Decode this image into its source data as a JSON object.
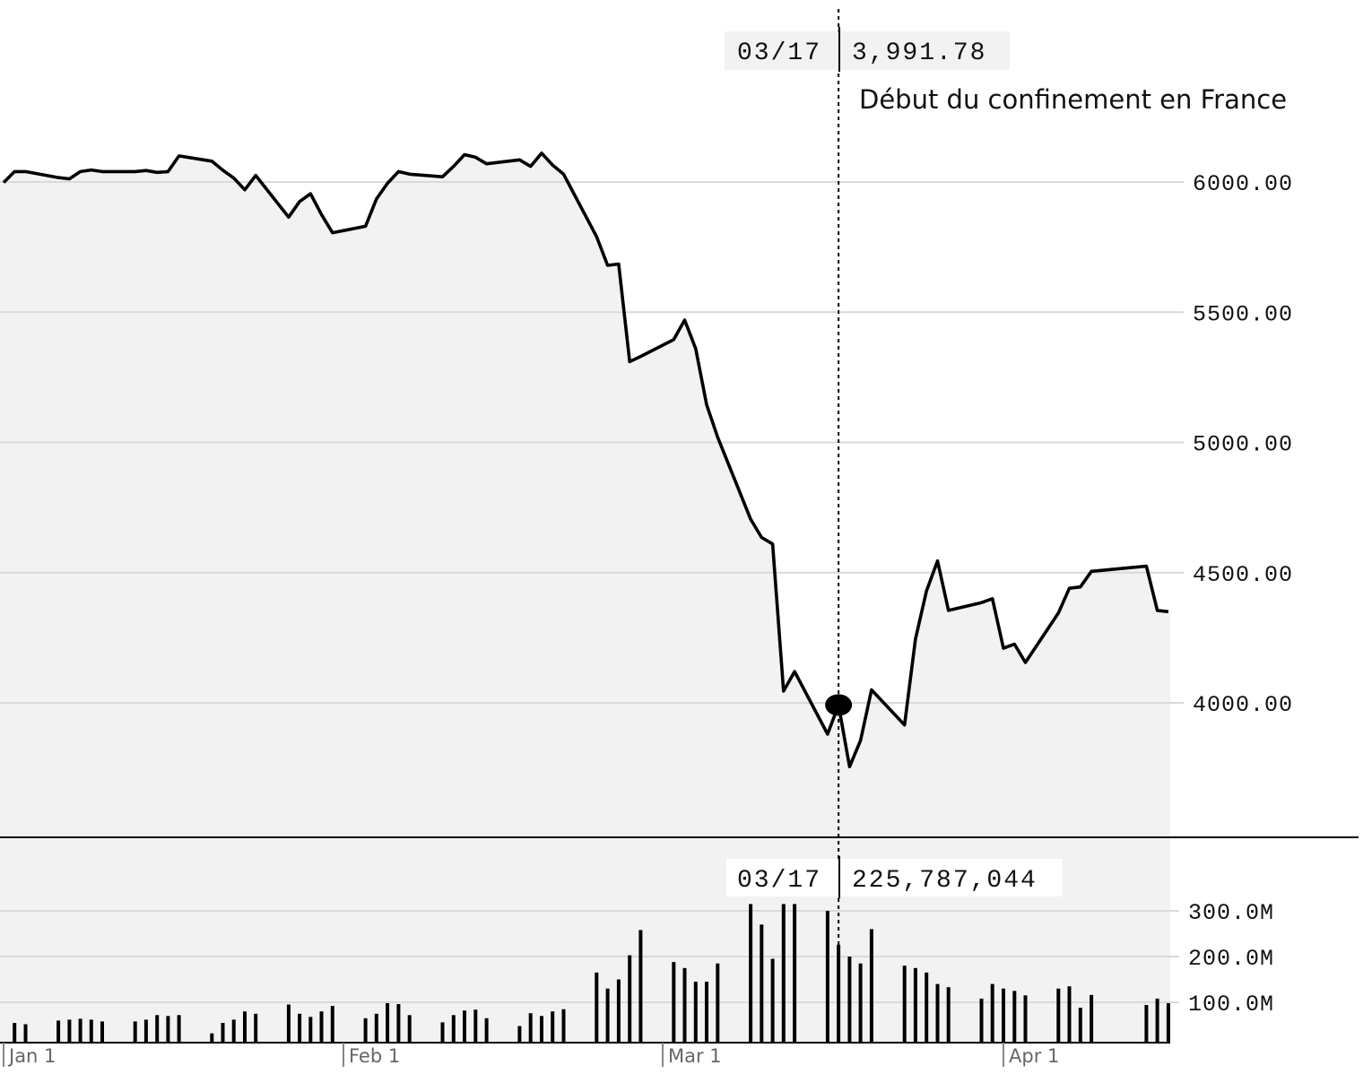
{
  "colors": {
    "line": "#000000",
    "area_fill": "#f2f2f2",
    "grid": "#d9d9d9",
    "readout_bg": "#f2f2f2",
    "volume_readout_bg": "#ffffff"
  },
  "chart_data": [
    {
      "type": "line",
      "x_axis": "date",
      "series": [
        {
          "values": [
            [
              "2020-01-01",
              5998
            ],
            [
              "2020-01-02",
              6040
            ],
            [
              "2020-01-03",
              6040
            ],
            [
              "2020-01-06",
              6017
            ],
            [
              "2020-01-07",
              6012
            ],
            [
              "2020-01-08",
              6040
            ],
            [
              "2020-01-09",
              6046
            ],
            [
              "2020-01-10",
              6040
            ],
            [
              "2020-01-13",
              6040
            ],
            [
              "2020-01-14",
              6044
            ],
            [
              "2020-01-15",
              6037
            ],
            [
              "2020-01-16",
              6040
            ],
            [
              "2020-01-17",
              6100
            ],
            [
              "2020-01-20",
              6080
            ],
            [
              "2020-01-21",
              6045
            ],
            [
              "2020-01-22",
              6015
            ],
            [
              "2020-01-23",
              5970
            ],
            [
              "2020-01-24",
              6025
            ],
            [
              "2020-01-27",
              5865
            ],
            [
              "2020-01-28",
              5925
            ],
            [
              "2020-01-29",
              5955
            ],
            [
              "2020-01-30",
              5875
            ],
            [
              "2020-01-31",
              5805
            ],
            [
              "2020-02-03",
              5830
            ],
            [
              "2020-02-04",
              5935
            ],
            [
              "2020-02-05",
              5995
            ],
            [
              "2020-02-06",
              6040
            ],
            [
              "2020-02-07",
              6030
            ],
            [
              "2020-02-10",
              6020
            ],
            [
              "2020-02-11",
              6060
            ],
            [
              "2020-02-12",
              6105
            ],
            [
              "2020-02-13",
              6095
            ],
            [
              "2020-02-14",
              6070
            ],
            [
              "2020-02-17",
              6085
            ],
            [
              "2020-02-18",
              6060
            ],
            [
              "2020-02-19",
              6111
            ],
            [
              "2020-02-20",
              6065
            ],
            [
              "2020-02-21",
              6030
            ],
            [
              "2020-02-24",
              5790
            ],
            [
              "2020-02-25",
              5680
            ],
            [
              "2020-02-26",
              5685
            ],
            [
              "2020-02-27",
              5310
            ],
            [
              "2020-02-28",
              5330
            ],
            [
              "2020-03-02",
              5395
            ],
            [
              "2020-03-03",
              5470
            ],
            [
              "2020-03-04",
              5360
            ],
            [
              "2020-03-05",
              5145
            ],
            [
              "2020-03-06",
              5020
            ],
            [
              "2020-03-09",
              4705
            ],
            [
              "2020-03-10",
              4635
            ],
            [
              "2020-03-11",
              4610
            ],
            [
              "2020-03-12",
              4045
            ],
            [
              "2020-03-13",
              4120
            ],
            [
              "2020-03-16",
              3880
            ],
            [
              "2020-03-17",
              3991.78
            ],
            [
              "2020-03-18",
              3755
            ],
            [
              "2020-03-19",
              3855
            ],
            [
              "2020-03-20",
              4050
            ],
            [
              "2020-03-23",
              3915
            ],
            [
              "2020-03-24",
              4245
            ],
            [
              "2020-03-25",
              4430
            ],
            [
              "2020-03-26",
              4545
            ],
            [
              "2020-03-27",
              4355
            ],
            [
              "2020-03-30",
              4385
            ],
            [
              "2020-03-31",
              4400
            ],
            [
              "2020-04-01",
              4210
            ],
            [
              "2020-04-02",
              4225
            ],
            [
              "2020-04-03",
              4155
            ],
            [
              "2020-04-06",
              4345
            ],
            [
              "2020-04-07",
              4440
            ],
            [
              "2020-04-08",
              4445
            ],
            [
              "2020-04-09",
              4505
            ],
            [
              "2020-04-14",
              4525
            ],
            [
              "2020-04-15",
              4355
            ],
            [
              "2020-04-16",
              4350
            ]
          ]
        }
      ],
      "y_ticks": [
        "6000.00",
        "5500.00",
        "5000.00",
        "4500.00",
        "4000.00"
      ],
      "y_tick_values": [
        6000,
        5500,
        5000,
        4500,
        4000
      ],
      "ylim": [
        3500,
        6700
      ],
      "grid": true,
      "crosshair": {
        "date": "2020-03-17",
        "date_label": "03/17",
        "value_label": "3,991.78",
        "annotation": "Début du confinement en France"
      }
    },
    {
      "type": "bar",
      "x_axis": "date",
      "series": [
        {
          "values": [
            [
              "2020-01-02",
              55
            ],
            [
              "2020-01-03",
              52
            ],
            [
              "2020-01-06",
              60
            ],
            [
              "2020-01-07",
              62
            ],
            [
              "2020-01-08",
              64
            ],
            [
              "2020-01-09",
              62
            ],
            [
              "2020-01-10",
              58
            ],
            [
              "2020-01-13",
              58
            ],
            [
              "2020-01-14",
              62
            ],
            [
              "2020-01-15",
              72
            ],
            [
              "2020-01-16",
              70
            ],
            [
              "2020-01-17",
              72
            ],
            [
              "2020-01-20",
              32
            ],
            [
              "2020-01-21",
              55
            ],
            [
              "2020-01-22",
              62
            ],
            [
              "2020-01-23",
              80
            ],
            [
              "2020-01-24",
              75
            ],
            [
              "2020-01-27",
              95
            ],
            [
              "2020-01-28",
              75
            ],
            [
              "2020-01-29",
              68
            ],
            [
              "2020-01-30",
              80
            ],
            [
              "2020-01-31",
              92
            ],
            [
              "2020-02-03",
              65
            ],
            [
              "2020-02-04",
              75
            ],
            [
              "2020-02-05",
              98
            ],
            [
              "2020-02-06",
              96
            ],
            [
              "2020-02-07",
              72
            ],
            [
              "2020-02-10",
              56
            ],
            [
              "2020-02-11",
              72
            ],
            [
              "2020-02-12",
              82
            ],
            [
              "2020-02-13",
              84
            ],
            [
              "2020-02-14",
              65
            ],
            [
              "2020-02-17",
              48
            ],
            [
              "2020-02-18",
              76
            ],
            [
              "2020-02-19",
              70
            ],
            [
              "2020-02-20",
              80
            ],
            [
              "2020-02-21",
              85
            ],
            [
              "2020-02-24",
              165
            ],
            [
              "2020-02-25",
              130
            ],
            [
              "2020-02-26",
              150
            ],
            [
              "2020-02-27",
              203
            ],
            [
              "2020-02-28",
              258
            ],
            [
              "2020-03-02",
              188
            ],
            [
              "2020-03-03",
              175
            ],
            [
              "2020-03-04",
              145
            ],
            [
              "2020-03-05",
              145
            ],
            [
              "2020-03-06",
              185
            ],
            [
              "2020-03-09",
              315
            ],
            [
              "2020-03-10",
              270
            ],
            [
              "2020-03-11",
              195
            ],
            [
              "2020-03-12",
              315
            ],
            [
              "2020-03-13",
              315
            ],
            [
              "2020-03-16",
              300
            ],
            [
              "2020-03-17",
              225.787044
            ],
            [
              "2020-03-18",
              200
            ],
            [
              "2020-03-19",
              185
            ],
            [
              "2020-03-20",
              260
            ],
            [
              "2020-03-23",
              180
            ],
            [
              "2020-03-24",
              175
            ],
            [
              "2020-03-25",
              165
            ],
            [
              "2020-03-26",
              140
            ],
            [
              "2020-03-27",
              133
            ],
            [
              "2020-03-30",
              108
            ],
            [
              "2020-03-31",
              140
            ],
            [
              "2020-04-01",
              130
            ],
            [
              "2020-04-02",
              125
            ],
            [
              "2020-04-03",
              115
            ],
            [
              "2020-04-06",
              130
            ],
            [
              "2020-04-07",
              135
            ],
            [
              "2020-04-08",
              88
            ],
            [
              "2020-04-09",
              116
            ],
            [
              "2020-04-14",
              94
            ],
            [
              "2020-04-15",
              108
            ],
            [
              "2020-04-16",
              98
            ]
          ]
        }
      ],
      "y_ticks": [
        "300.0M",
        "200.0M",
        "100.0M"
      ],
      "y_tick_values": [
        300,
        200,
        100
      ],
      "y_unit": "millions",
      "ylim": [
        0,
        315
      ],
      "grid": true,
      "x_ticks": [
        {
          "date": "2020-01-01",
          "label": "Jan 1"
        },
        {
          "date": "2020-02-01",
          "label": "Feb 1"
        },
        {
          "date": "2020-03-01",
          "label": "Mar 1"
        },
        {
          "date": "2020-04-01",
          "label": "Apr 1"
        }
      ],
      "crosshair": {
        "date": "2020-03-17",
        "date_label": "03/17",
        "value_label": "225,787,044"
      }
    }
  ]
}
